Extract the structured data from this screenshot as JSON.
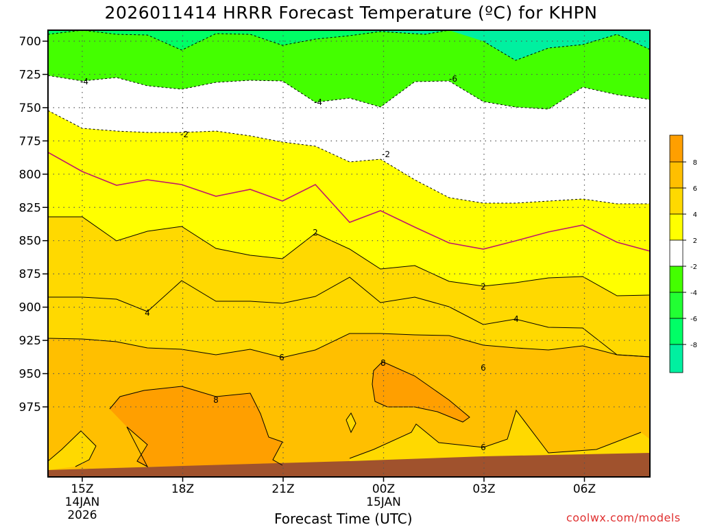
{
  "title": "2026011414 HRRR Forecast Temperature (ºC) for KHPN",
  "credit": "coolwx.com/models",
  "chart_data": {
    "type": "contour",
    "xlabel": "Forecast Time (UTC)",
    "ylabel": "",
    "y_ticks": [
      "700",
      "725",
      "750",
      "775",
      "800",
      "825",
      "850",
      "875",
      "900",
      "925",
      "950",
      "975"
    ],
    "x_ticks": [
      {
        "label": "15Z",
        "sub": [
          "14JAN",
          "2026"
        ]
      },
      {
        "label": "18Z",
        "sub": []
      },
      {
        "label": "21Z",
        "sub": []
      },
      {
        "label": "00Z",
        "sub": [
          "15JAN"
        ]
      },
      {
        "label": "03Z",
        "sub": []
      },
      {
        "label": "06Z",
        "sub": []
      }
    ],
    "contour_labels": [
      "-6",
      "-4",
      "-4",
      "-2",
      "-2",
      "2",
      "2",
      "4",
      "4",
      "6",
      "6",
      "6",
      "8",
      "8"
    ],
    "colorbar_labels": [
      "8",
      "6",
      "4",
      "2",
      "-2",
      "-4",
      "-6",
      "-8"
    ],
    "colors": {
      "cool_teal": "#00f0a0",
      "cool_green2": "#00ff66",
      "cool_green": "#44ff00",
      "neutral": "#ffffff",
      "warm_yellow": "#ffff00",
      "warm_gold": "#ffd900",
      "warm_amber": "#ffbf00",
      "warm_orange": "#ff9f00",
      "ground": "#a0522d",
      "freezing_line": "#c0186a"
    },
    "grid": true
  }
}
